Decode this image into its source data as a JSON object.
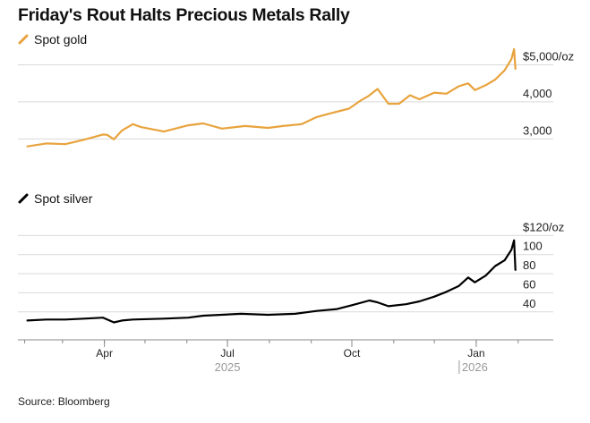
{
  "title": "Friday's Rout Halts Precious Metals Rally",
  "source": "Source: Bloomberg",
  "colors": {
    "gold": "#E8A33D",
    "silver": "#000000",
    "grid": "#d9d9d9",
    "axis": "#888888"
  },
  "chart_data": [
    {
      "type": "line",
      "series": [
        {
          "name": "Spot gold",
          "color": "#E8A33D"
        }
      ],
      "ylim": [
        2600,
        5300
      ],
      "y_ticks": [
        3000,
        4000,
        5000
      ],
      "y_tick_labels": [
        "3,000",
        "4,000",
        "$5,000/oz"
      ],
      "grid": true,
      "x": [
        "2025-02-03",
        "2025-02-17",
        "2025-03-03",
        "2025-03-17",
        "2025-03-31",
        "2025-04-03",
        "2025-04-08",
        "2025-04-14",
        "2025-04-22",
        "2025-04-28",
        "2025-05-15",
        "2025-06-02",
        "2025-06-13",
        "2025-06-27",
        "2025-07-14",
        "2025-07-31",
        "2025-08-11",
        "2025-08-25",
        "2025-09-05",
        "2025-09-15",
        "2025-09-29",
        "2025-10-08",
        "2025-10-13",
        "2025-10-20",
        "2025-10-28",
        "2025-11-05",
        "2025-11-13",
        "2025-11-20",
        "2025-12-01",
        "2025-12-10",
        "2025-12-19",
        "2025-12-26",
        "2025-12-31",
        "2026-01-08",
        "2026-01-15",
        "2026-01-22",
        "2026-01-27",
        "2026-01-29",
        "2026-01-30"
      ],
      "values": [
        2800,
        2880,
        2860,
        2980,
        3120,
        3110,
        2990,
        3230,
        3400,
        3320,
        3200,
        3370,
        3420,
        3280,
        3350,
        3300,
        3350,
        3400,
        3590,
        3690,
        3820,
        4050,
        4150,
        4350,
        3950,
        3950,
        4180,
        4070,
        4250,
        4220,
        4420,
        4500,
        4320,
        4450,
        4600,
        4850,
        5150,
        5420,
        4890
      ]
    },
    {
      "type": "line",
      "series": [
        {
          "name": "Spot silver",
          "color": "#000000"
        }
      ],
      "ylim": [
        22,
        125
      ],
      "y_ticks": [
        40,
        60,
        80,
        100,
        120
      ],
      "y_tick_labels": [
        "40",
        "60",
        "80",
        "100",
        "$120/oz"
      ],
      "grid": true,
      "x_tick_labels": [
        "Apr",
        "Jul",
        "Oct",
        "Jan"
      ],
      "x_ticks": [
        "2025-04-01",
        "2025-07-01",
        "2025-10-01",
        "2026-01-01"
      ],
      "year_labels": [
        "2025",
        "2026"
      ],
      "x": [
        "2025-02-03",
        "2025-02-17",
        "2025-03-03",
        "2025-03-17",
        "2025-03-31",
        "2025-04-03",
        "2025-04-08",
        "2025-04-14",
        "2025-04-22",
        "2025-05-15",
        "2025-06-02",
        "2025-06-13",
        "2025-07-11",
        "2025-07-31",
        "2025-08-20",
        "2025-09-05",
        "2025-09-20",
        "2025-10-01",
        "2025-10-14",
        "2025-10-20",
        "2025-10-28",
        "2025-11-10",
        "2025-11-20",
        "2025-12-01",
        "2025-12-10",
        "2025-12-19",
        "2025-12-26",
        "2025-12-31",
        "2026-01-08",
        "2026-01-15",
        "2026-01-22",
        "2026-01-27",
        "2026-01-29",
        "2026-01-30"
      ],
      "values": [
        31,
        32,
        32,
        33,
        34,
        32,
        29,
        31,
        32,
        33,
        34,
        36,
        38,
        37,
        38,
        41,
        43,
        47,
        52,
        50,
        46,
        48,
        51,
        56,
        61,
        67,
        76,
        71,
        78,
        88,
        94,
        105,
        115,
        84
      ]
    }
  ]
}
